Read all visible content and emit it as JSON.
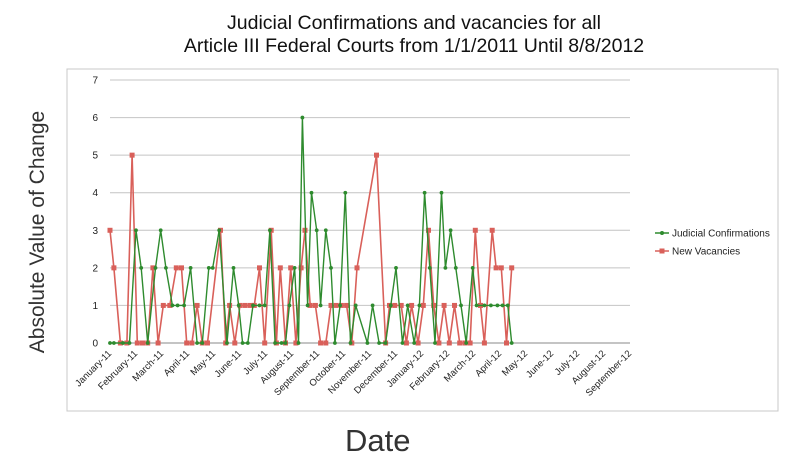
{
  "chart_data": {
    "type": "line",
    "title_line1": "Judicial Confirmations and vacancies for all",
    "title_line2": "Article III Federal Courts from 1/1/2011 Until 8/8/2012",
    "xlabel": "Date",
    "ylabel": "Absolute Value of Change",
    "ylim": [
      0,
      7
    ],
    "yticks": [
      "0",
      "1",
      "2",
      "3",
      "4",
      "5",
      "6",
      "7"
    ],
    "xlim": [
      "January-11",
      "September-12"
    ],
    "xticks": [
      "January-11",
      "February-11",
      "March-11",
      "April-11",
      "May-11",
      "June-11",
      "July-11",
      "August-11",
      "September-11",
      "October-11",
      "November-11",
      "December-11",
      "January-12",
      "February-12",
      "March-12",
      "April-12",
      "May-12",
      "June-12",
      "July-12",
      "August-12",
      "September-12"
    ],
    "grid": true,
    "legend_position": "right",
    "series": [
      {
        "name": "Judicial Confirmations",
        "color": "#2e8b2e",
        "points": [
          [
            0.0,
            0
          ],
          [
            0.15,
            0
          ],
          [
            0.5,
            0
          ],
          [
            0.75,
            0
          ],
          [
            1.0,
            3
          ],
          [
            1.2,
            2
          ],
          [
            1.45,
            0
          ],
          [
            1.75,
            2
          ],
          [
            1.95,
            3
          ],
          [
            2.15,
            2
          ],
          [
            2.4,
            1
          ],
          [
            2.6,
            1
          ],
          [
            2.85,
            1
          ],
          [
            3.1,
            2
          ],
          [
            3.35,
            0
          ],
          [
            3.55,
            0
          ],
          [
            3.8,
            2
          ],
          [
            3.95,
            2
          ],
          [
            4.2,
            3
          ],
          [
            4.5,
            0
          ],
          [
            4.75,
            2
          ],
          [
            4.95,
            1
          ],
          [
            5.1,
            0
          ],
          [
            5.3,
            0
          ],
          [
            5.5,
            1
          ],
          [
            5.75,
            1
          ],
          [
            5.95,
            1
          ],
          [
            6.15,
            3
          ],
          [
            6.35,
            0
          ],
          [
            6.6,
            0
          ],
          [
            6.75,
            0
          ],
          [
            6.9,
            1
          ],
          [
            7.1,
            2
          ],
          [
            7.25,
            0
          ],
          [
            7.4,
            6
          ],
          [
            7.6,
            1
          ],
          [
            7.75,
            4
          ],
          [
            7.95,
            3
          ],
          [
            8.1,
            1
          ],
          [
            8.3,
            3
          ],
          [
            8.5,
            2
          ],
          [
            8.65,
            0
          ],
          [
            8.85,
            1
          ],
          [
            9.05,
            4
          ],
          [
            9.25,
            0
          ],
          [
            9.45,
            1
          ],
          [
            9.9,
            0
          ],
          [
            10.1,
            1
          ],
          [
            10.35,
            0
          ],
          [
            10.6,
            0
          ],
          [
            10.8,
            1
          ],
          [
            11.0,
            2
          ],
          [
            11.25,
            0
          ],
          [
            11.45,
            1
          ],
          [
            11.7,
            0
          ],
          [
            11.9,
            1
          ],
          [
            12.1,
            4
          ],
          [
            12.3,
            2
          ],
          [
            12.5,
            0
          ],
          [
            12.75,
            4
          ],
          [
            12.9,
            2
          ],
          [
            13.1,
            3
          ],
          [
            13.3,
            2
          ],
          [
            13.5,
            1
          ],
          [
            13.7,
            0
          ],
          [
            13.95,
            2
          ],
          [
            14.1,
            1
          ],
          [
            14.4,
            1
          ],
          [
            14.65,
            1
          ],
          [
            14.9,
            1
          ],
          [
            15.1,
            1
          ],
          [
            15.3,
            1
          ],
          [
            15.45,
            0
          ]
        ]
      },
      {
        "name": "New Vacancies",
        "color": "#d9605a",
        "points": [
          [
            0.0,
            3
          ],
          [
            0.15,
            2
          ],
          [
            0.4,
            0
          ],
          [
            0.65,
            0
          ],
          [
            0.85,
            5
          ],
          [
            1.05,
            0
          ],
          [
            1.25,
            0
          ],
          [
            1.45,
            0
          ],
          [
            1.65,
            2
          ],
          [
            1.85,
            0
          ],
          [
            2.05,
            1
          ],
          [
            2.3,
            1
          ],
          [
            2.55,
            2
          ],
          [
            2.75,
            2
          ],
          [
            2.95,
            0
          ],
          [
            3.15,
            0
          ],
          [
            3.35,
            1
          ],
          [
            3.55,
            0
          ],
          [
            3.75,
            0
          ],
          [
            4.25,
            3
          ],
          [
            4.45,
            0
          ],
          [
            4.6,
            1
          ],
          [
            4.8,
            0
          ],
          [
            5.0,
            1
          ],
          [
            5.2,
            1
          ],
          [
            5.4,
            1
          ],
          [
            5.55,
            1
          ],
          [
            5.75,
            2
          ],
          [
            5.95,
            0
          ],
          [
            6.2,
            3
          ],
          [
            6.4,
            0
          ],
          [
            6.55,
            2
          ],
          [
            6.75,
            0
          ],
          [
            6.95,
            2
          ],
          [
            7.15,
            0
          ],
          [
            7.35,
            2
          ],
          [
            7.5,
            3
          ],
          [
            7.7,
            1
          ],
          [
            7.9,
            1
          ],
          [
            8.1,
            0
          ],
          [
            8.3,
            0
          ],
          [
            8.5,
            1
          ],
          [
            8.7,
            1
          ],
          [
            8.9,
            1
          ],
          [
            9.1,
            1
          ],
          [
            9.3,
            0
          ],
          [
            9.5,
            2
          ],
          [
            10.25,
            5
          ],
          [
            10.6,
            0
          ],
          [
            10.75,
            1
          ],
          [
            10.95,
            1
          ],
          [
            11.2,
            1
          ],
          [
            11.4,
            0
          ],
          [
            11.6,
            1
          ],
          [
            11.85,
            0
          ],
          [
            12.05,
            1
          ],
          [
            12.25,
            3
          ],
          [
            12.45,
            1
          ],
          [
            12.65,
            0
          ],
          [
            12.85,
            1
          ],
          [
            13.05,
            0
          ],
          [
            13.25,
            1
          ],
          [
            13.45,
            0
          ],
          [
            13.65,
            0
          ],
          [
            13.85,
            0
          ],
          [
            14.05,
            3
          ],
          [
            14.25,
            1
          ],
          [
            14.4,
            0
          ],
          [
            14.7,
            3
          ],
          [
            14.85,
            2
          ],
          [
            15.05,
            2
          ],
          [
            15.25,
            0
          ],
          [
            15.45,
            2
          ]
        ]
      }
    ]
  }
}
